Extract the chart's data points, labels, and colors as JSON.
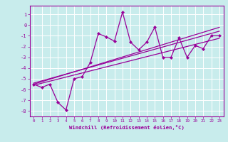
{
  "xlabel": "Windchill (Refroidissement éolien,°C)",
  "bg_color": "#c8ecec",
  "line_color": "#990099",
  "grid_color": "#ffffff",
  "xlim": [
    -0.5,
    23.5
  ],
  "ylim": [
    -8.5,
    1.8
  ],
  "xticks": [
    0,
    1,
    2,
    3,
    4,
    5,
    6,
    7,
    8,
    9,
    10,
    11,
    12,
    13,
    14,
    15,
    16,
    17,
    18,
    19,
    20,
    21,
    22,
    23
  ],
  "yticks": [
    1,
    0,
    -1,
    -2,
    -3,
    -4,
    -5,
    -6,
    -7,
    -8
  ],
  "x_data": [
    0,
    1,
    2,
    3,
    4,
    5,
    6,
    7,
    8,
    9,
    10,
    11,
    12,
    13,
    14,
    15,
    16,
    17,
    18,
    19,
    20,
    21,
    22,
    23
  ],
  "y_main": [
    -5.5,
    -5.8,
    -5.5,
    -7.2,
    -7.9,
    -5.0,
    -4.8,
    -3.5,
    -0.8,
    -1.1,
    -1.5,
    1.2,
    -1.6,
    -2.3,
    -1.6,
    -0.2,
    -3.0,
    -3.0,
    -1.2,
    -3.0,
    -1.9,
    -2.2,
    -1.0,
    -1.0
  ],
  "y_reg1": [
    -5.5,
    -5.27,
    -5.04,
    -4.81,
    -4.58,
    -4.35,
    -4.12,
    -3.89,
    -3.66,
    -3.43,
    -3.2,
    -2.97,
    -2.74,
    -2.51,
    -2.28,
    -2.05,
    -1.82,
    -1.59,
    -1.36,
    -1.13,
    -0.9,
    -0.67,
    -0.44,
    -0.21
  ],
  "y_reg2": [
    -5.4,
    -5.19,
    -4.98,
    -4.77,
    -4.56,
    -4.35,
    -4.14,
    -3.93,
    -3.72,
    -3.51,
    -3.3,
    -3.09,
    -2.88,
    -2.67,
    -2.46,
    -2.25,
    -2.04,
    -1.83,
    -1.62,
    -1.41,
    -1.2,
    -0.99,
    -0.78,
    -0.57
  ],
  "y_reg3": [
    -5.6,
    -5.41,
    -5.22,
    -5.03,
    -4.84,
    -4.65,
    -4.46,
    -4.27,
    -4.08,
    -3.89,
    -3.7,
    -3.51,
    -3.32,
    -3.13,
    -2.94,
    -2.75,
    -2.56,
    -2.37,
    -2.18,
    -1.99,
    -1.8,
    -1.61,
    -1.42,
    -1.23
  ]
}
